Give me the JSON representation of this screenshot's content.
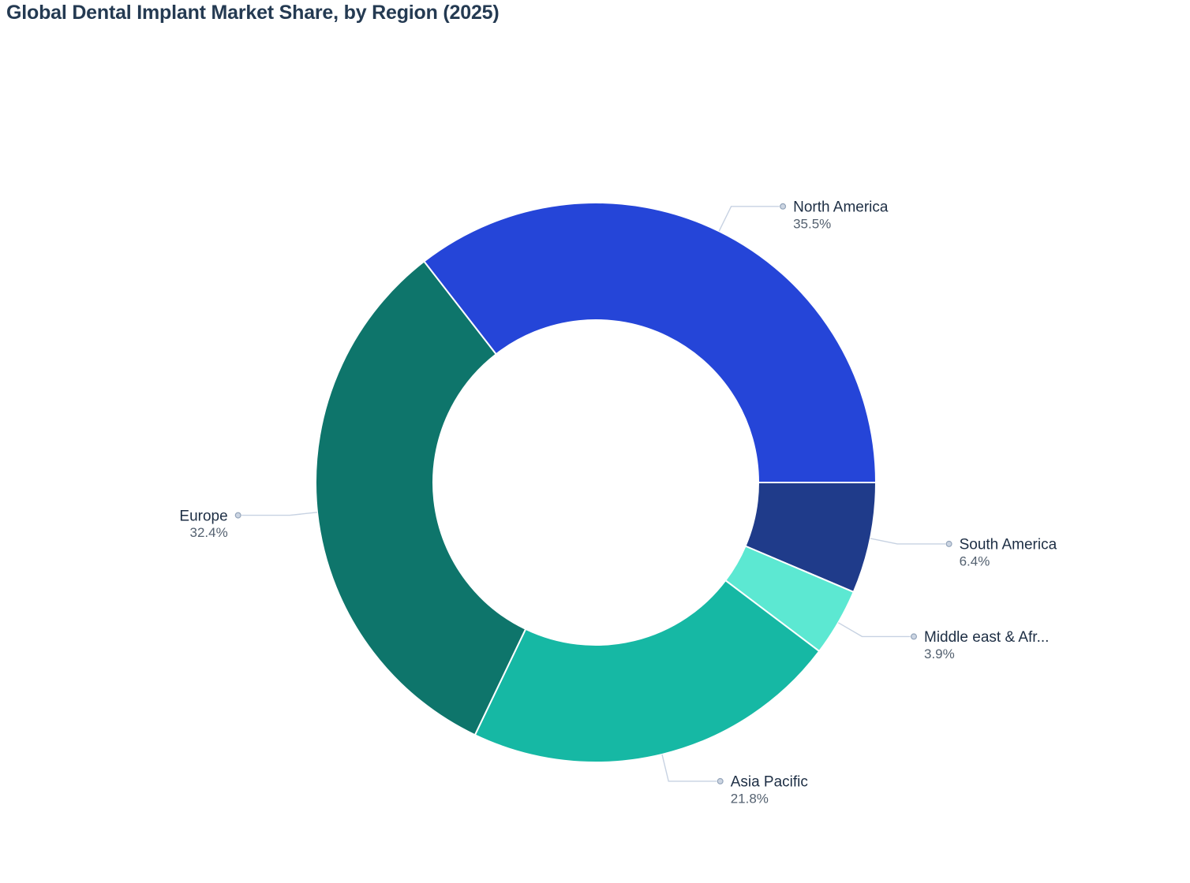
{
  "title": {
    "text": "Global Dental Implant Market Share, by Region (2025)"
  },
  "chart_data": {
    "type": "pie",
    "subtype": "donut",
    "title": "Global Dental Implant Market Share, by Region (2025)",
    "unit": "percent",
    "hole_ratio": 0.58,
    "rotation": "largest slice (North America) ends at 3 o'clock; slices laid out clockwise starting at 3 o'clock",
    "legend_position": "none - outside labels with elbow leader lines and dot markers",
    "grid": false,
    "points": [
      {
        "label": "South America",
        "value": 6.4,
        "display": "6.4%",
        "color": "#1f3b8a"
      },
      {
        "label": "Middle east & Afr...",
        "value": 3.9,
        "display": "3.9%",
        "color": "#5ce8d2"
      },
      {
        "label": "Asia Pacific",
        "value": 21.8,
        "display": "21.8%",
        "color": "#16b8a4"
      },
      {
        "label": "Europe",
        "value": 32.4,
        "display": "32.4%",
        "color": "#0e756b"
      },
      {
        "label": "North America",
        "value": 35.5,
        "display": "35.5%",
        "color": "#2545d8"
      }
    ],
    "total": 100.0
  },
  "style": {
    "background": "#ffffff",
    "title_color": "#243a52",
    "label_color": "#1d2e44",
    "percent_color": "#546170",
    "leader_line_color": "#c7d2e2",
    "marker_fill": "#ccd5e2",
    "marker_stroke": "#93a4ba",
    "slice_border_color": "#ffffff"
  }
}
